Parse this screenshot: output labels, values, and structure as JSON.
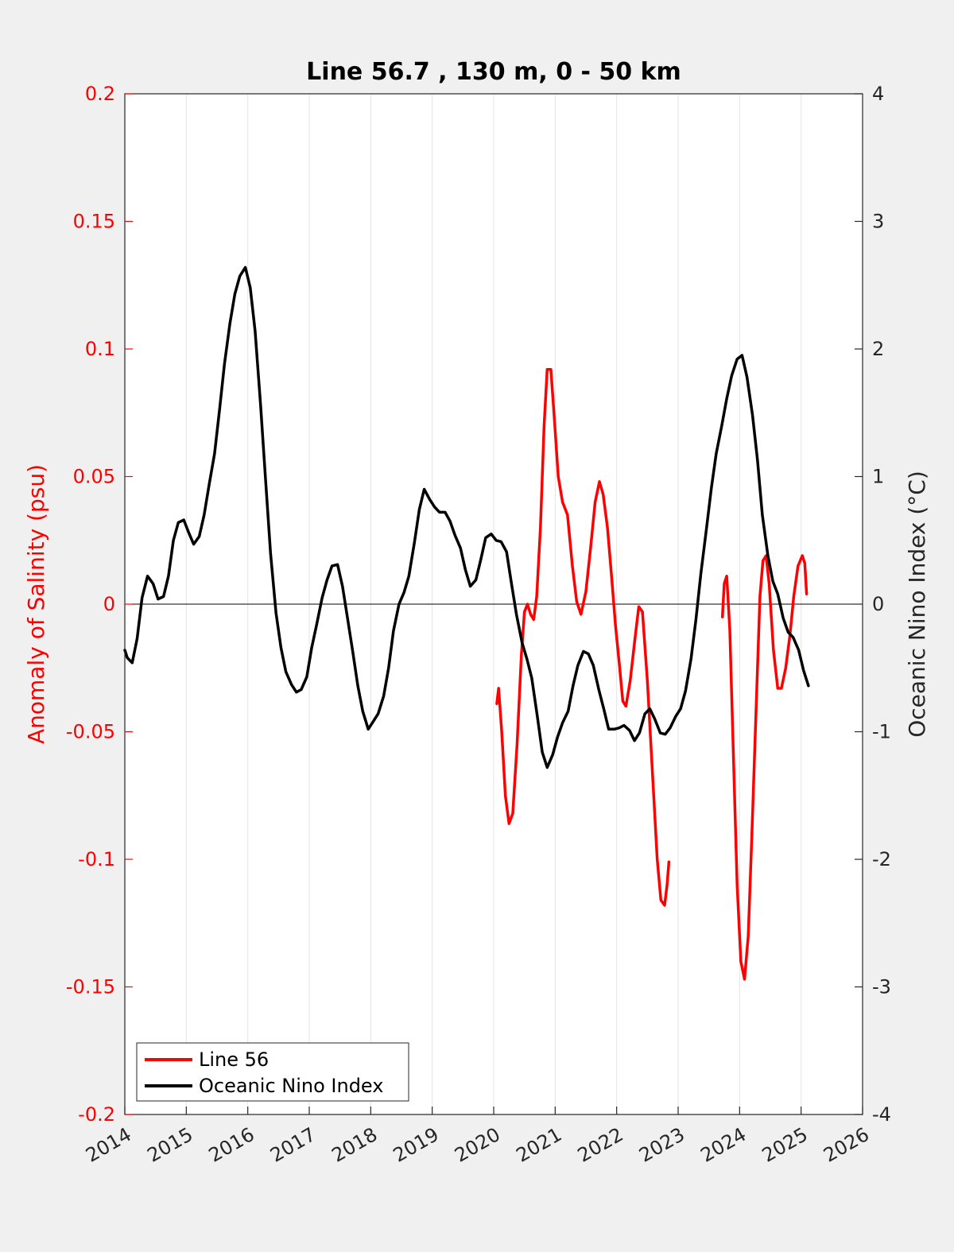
{
  "chart_data": {
    "type": "line",
    "title": "Line 56.7 , 130 m, 0 - 50 km",
    "xlim": [
      2014,
      2026
    ],
    "x_ticks": [
      "2014",
      "2015",
      "2016",
      "2017",
      "2018",
      "2019",
      "2020",
      "2021",
      "2022",
      "2023",
      "2024",
      "2025",
      "2026"
    ],
    "y_left": {
      "label": "Anomaly of Salinity (psu)",
      "lim": [
        -0.2,
        0.2
      ],
      "ticks": [
        "0.2",
        "0.15",
        "0.1",
        "0.05",
        "0",
        "-0.05",
        "-0.1",
        "-0.15",
        "-0.2"
      ],
      "color": "#ff0000"
    },
    "y_right": {
      "label": "Oceanic Nino Index (°C)",
      "lim": [
        -4,
        4
      ],
      "ticks": [
        "4",
        "3",
        "2",
        "1",
        "0",
        "-1",
        "-2",
        "-3",
        "-4"
      ],
      "color": "#262626"
    },
    "grid": "vertical",
    "zero_line": true,
    "legend_position": "bottom-left",
    "series": [
      {
        "name": "Line 56",
        "axis": "left",
        "color": "#ff0000",
        "segments": [
          [
            [
              2020.05,
              -0.039
            ],
            [
              2020.08,
              -0.033
            ],
            [
              2020.13,
              -0.05
            ],
            [
              2020.19,
              -0.075
            ],
            [
              2020.25,
              -0.086
            ],
            [
              2020.31,
              -0.082
            ],
            [
              2020.38,
              -0.055
            ],
            [
              2020.45,
              -0.02
            ],
            [
              2020.5,
              -0.003
            ],
            [
              2020.55,
              0
            ],
            [
              2020.6,
              -0.004
            ],
            [
              2020.65,
              -0.006
            ],
            [
              2020.7,
              0.003
            ],
            [
              2020.76,
              0.03
            ],
            [
              2020.82,
              0.07
            ],
            [
              2020.87,
              0.092
            ],
            [
              2020.93,
              0.092
            ],
            [
              2020.98,
              0.075
            ],
            [
              2021.05,
              0.05
            ],
            [
              2021.12,
              0.04
            ],
            [
              2021.2,
              0.035
            ],
            [
              2021.28,
              0.015
            ],
            [
              2021.35,
              0.001
            ],
            [
              2021.42,
              -0.004
            ],
            [
              2021.5,
              0.005
            ],
            [
              2021.58,
              0.023
            ],
            [
              2021.65,
              0.04
            ],
            [
              2021.72,
              0.048
            ],
            [
              2021.78,
              0.043
            ],
            [
              2021.85,
              0.03
            ],
            [
              2021.92,
              0.01
            ],
            [
              2021.98,
              -0.008
            ],
            [
              2022.05,
              -0.025
            ],
            [
              2022.1,
              -0.038
            ],
            [
              2022.15,
              -0.04
            ],
            [
              2022.22,
              -0.03
            ],
            [
              2022.3,
              -0.013
            ],
            [
              2022.36,
              -0.001
            ],
            [
              2022.42,
              -0.003
            ],
            [
              2022.5,
              -0.03
            ],
            [
              2022.58,
              -0.065
            ],
            [
              2022.66,
              -0.1
            ],
            [
              2022.72,
              -0.116
            ],
            [
              2022.78,
              -0.118
            ],
            [
              2022.82,
              -0.11
            ],
            [
              2022.85,
              -0.101
            ]
          ],
          [
            [
              2023.72,
              -0.005
            ],
            [
              2023.75,
              0.008
            ],
            [
              2023.79,
              0.011
            ],
            [
              2023.84,
              -0.01
            ],
            [
              2023.9,
              -0.06
            ],
            [
              2023.96,
              -0.11
            ],
            [
              2024.02,
              -0.14
            ],
            [
              2024.08,
              -0.147
            ],
            [
              2024.14,
              -0.13
            ],
            [
              2024.2,
              -0.09
            ],
            [
              2024.27,
              -0.04
            ],
            [
              2024.33,
              0.003
            ],
            [
              2024.38,
              0.017
            ],
            [
              2024.43,
              0.019
            ],
            [
              2024.48,
              0.008
            ],
            [
              2024.55,
              -0.018
            ],
            [
              2024.62,
              -0.033
            ],
            [
              2024.68,
              -0.033
            ],
            [
              2024.75,
              -0.025
            ],
            [
              2024.82,
              -0.012
            ],
            [
              2024.88,
              0.003
            ],
            [
              2024.95,
              0.015
            ],
            [
              2025.02,
              0.019
            ],
            [
              2025.06,
              0.016
            ],
            [
              2025.09,
              0.004
            ]
          ]
        ]
      },
      {
        "name": "Oceanic Nino Index",
        "axis": "right",
        "color": "#000000",
        "segments": [
          [
            [
              2014.0,
              -0.36
            ],
            [
              2014.04,
              -0.42
            ],
            [
              2014.12,
              -0.46
            ],
            [
              2014.2,
              -0.27
            ],
            [
              2014.28,
              0.05
            ],
            [
              2014.37,
              0.22
            ],
            [
              2014.46,
              0.16
            ],
            [
              2014.54,
              0.04
            ],
            [
              2014.63,
              0.06
            ],
            [
              2014.71,
              0.22
            ],
            [
              2014.79,
              0.5
            ],
            [
              2014.87,
              0.64
            ],
            [
              2014.96,
              0.66
            ],
            [
              2015.04,
              0.56
            ],
            [
              2015.12,
              0.47
            ],
            [
              2015.21,
              0.53
            ],
            [
              2015.29,
              0.7
            ],
            [
              2015.37,
              0.93
            ],
            [
              2015.46,
              1.18
            ],
            [
              2015.54,
              1.52
            ],
            [
              2015.62,
              1.88
            ],
            [
              2015.71,
              2.2
            ],
            [
              2015.79,
              2.43
            ],
            [
              2015.87,
              2.57
            ],
            [
              2015.96,
              2.64
            ],
            [
              2016.04,
              2.48
            ],
            [
              2016.12,
              2.14
            ],
            [
              2016.21,
              1.55
            ],
            [
              2016.29,
              0.97
            ],
            [
              2016.37,
              0.4
            ],
            [
              2016.46,
              -0.07
            ],
            [
              2016.54,
              -0.34
            ],
            [
              2016.62,
              -0.53
            ],
            [
              2016.71,
              -0.63
            ],
            [
              2016.79,
              -0.69
            ],
            [
              2016.87,
              -0.67
            ],
            [
              2016.96,
              -0.57
            ],
            [
              2017.04,
              -0.34
            ],
            [
              2017.12,
              -0.16
            ],
            [
              2017.21,
              0.05
            ],
            [
              2017.29,
              0.19
            ],
            [
              2017.37,
              0.3
            ],
            [
              2017.46,
              0.31
            ],
            [
              2017.54,
              0.14
            ],
            [
              2017.62,
              -0.1
            ],
            [
              2017.71,
              -0.38
            ],
            [
              2017.79,
              -0.64
            ],
            [
              2017.87,
              -0.84
            ],
            [
              2017.96,
              -0.98
            ],
            [
              2018.04,
              -0.92
            ],
            [
              2018.12,
              -0.86
            ],
            [
              2018.21,
              -0.72
            ],
            [
              2018.29,
              -0.5
            ],
            [
              2018.37,
              -0.21
            ],
            [
              2018.46,
              0.0
            ],
            [
              2018.54,
              0.09
            ],
            [
              2018.62,
              0.22
            ],
            [
              2018.71,
              0.48
            ],
            [
              2018.79,
              0.74
            ],
            [
              2018.87,
              0.9
            ],
            [
              2018.96,
              0.82
            ],
            [
              2019.04,
              0.76
            ],
            [
              2019.12,
              0.72
            ],
            [
              2019.21,
              0.72
            ],
            [
              2019.29,
              0.65
            ],
            [
              2019.37,
              0.54
            ],
            [
              2019.46,
              0.44
            ],
            [
              2019.54,
              0.27
            ],
            [
              2019.62,
              0.14
            ],
            [
              2019.71,
              0.19
            ],
            [
              2019.79,
              0.35
            ],
            [
              2019.87,
              0.52
            ],
            [
              2019.96,
              0.55
            ],
            [
              2020.04,
              0.5
            ],
            [
              2020.12,
              0.49
            ],
            [
              2020.21,
              0.41
            ],
            [
              2020.29,
              0.16
            ],
            [
              2020.37,
              -0.08
            ],
            [
              2020.46,
              -0.3
            ],
            [
              2020.54,
              -0.43
            ],
            [
              2020.62,
              -0.58
            ],
            [
              2020.71,
              -0.88
            ],
            [
              2020.79,
              -1.16
            ],
            [
              2020.87,
              -1.28
            ],
            [
              2020.96,
              -1.18
            ],
            [
              2021.04,
              -1.04
            ],
            [
              2021.12,
              -0.93
            ],
            [
              2021.21,
              -0.84
            ],
            [
              2021.29,
              -0.64
            ],
            [
              2021.37,
              -0.48
            ],
            [
              2021.46,
              -0.37
            ],
            [
              2021.54,
              -0.39
            ],
            [
              2021.62,
              -0.48
            ],
            [
              2021.71,
              -0.67
            ],
            [
              2021.79,
              -0.82
            ],
            [
              2021.87,
              -0.98
            ],
            [
              2021.96,
              -0.98
            ],
            [
              2022.04,
              -0.97
            ],
            [
              2022.12,
              -0.95
            ],
            [
              2022.21,
              -0.99
            ],
            [
              2022.29,
              -1.07
            ],
            [
              2022.37,
              -1.01
            ],
            [
              2022.46,
              -0.86
            ],
            [
              2022.54,
              -0.82
            ],
            [
              2022.62,
              -0.9
            ],
            [
              2022.71,
              -1.01
            ],
            [
              2022.79,
              -1.02
            ],
            [
              2022.87,
              -0.97
            ],
            [
              2022.96,
              -0.88
            ],
            [
              2023.04,
              -0.82
            ],
            [
              2023.12,
              -0.68
            ],
            [
              2023.21,
              -0.43
            ],
            [
              2023.29,
              -0.12
            ],
            [
              2023.37,
              0.24
            ],
            [
              2023.46,
              0.59
            ],
            [
              2023.54,
              0.91
            ],
            [
              2023.62,
              1.18
            ],
            [
              2023.71,
              1.4
            ],
            [
              2023.79,
              1.61
            ],
            [
              2023.87,
              1.79
            ],
            [
              2023.96,
              1.92
            ],
            [
              2024.04,
              1.95
            ],
            [
              2024.12,
              1.78
            ],
            [
              2024.21,
              1.48
            ],
            [
              2024.29,
              1.13
            ],
            [
              2024.37,
              0.7
            ],
            [
              2024.46,
              0.38
            ],
            [
              2024.54,
              0.18
            ],
            [
              2024.62,
              0.08
            ],
            [
              2024.71,
              -0.11
            ],
            [
              2024.79,
              -0.22
            ],
            [
              2024.87,
              -0.26
            ],
            [
              2024.96,
              -0.36
            ],
            [
              2025.04,
              -0.52
            ],
            [
              2025.12,
              -0.64
            ]
          ]
        ]
      }
    ]
  }
}
